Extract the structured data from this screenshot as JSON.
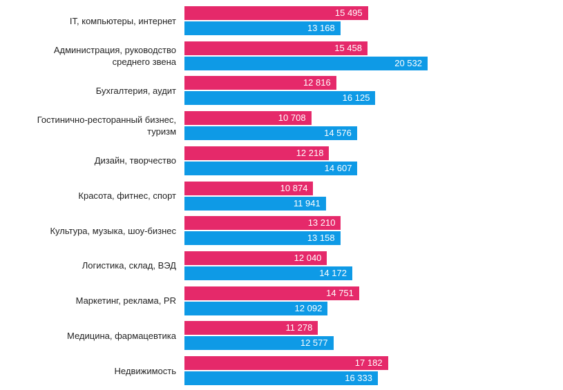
{
  "chart_data": {
    "type": "bar",
    "orientation": "horizontal",
    "categories": [
      "IT, компьютеры, интернет",
      "Администрация, руководство среднего звена",
      "Бухгалтерия, аудит",
      "Гостинично-ресторанный бизнес, туризм",
      "Дизайн, творчество",
      "Красота, фитнес, спорт",
      "Культура, музыка, шоу-бизнес",
      "Логистика, склад, ВЭД",
      "Маркетинг, реклама, PR",
      "Медицина, фармацевтика",
      "Недвижимость"
    ],
    "series": [
      {
        "color": "#e5296a",
        "values": [
          15495,
          15458,
          12816,
          10708,
          12218,
          10874,
          13210,
          12040,
          14751,
          11278,
          17182
        ],
        "value_labels": [
          "15 495",
          "15 458",
          "12 816",
          "10 708",
          "12 218",
          "10 874",
          "13 210",
          "12 040",
          "14 751",
          "11 278",
          "17 182"
        ]
      },
      {
        "color": "#0e9ae6",
        "values": [
          13168,
          20532,
          16125,
          14576,
          14607,
          11941,
          13158,
          14172,
          12092,
          12577,
          16333
        ],
        "value_labels": [
          "13 168",
          "20 532",
          "16 125",
          "14 576",
          "14 607",
          "11 941",
          "13 158",
          "14 172",
          "12 092",
          "12 577",
          "16 333"
        ]
      }
    ]
  }
}
